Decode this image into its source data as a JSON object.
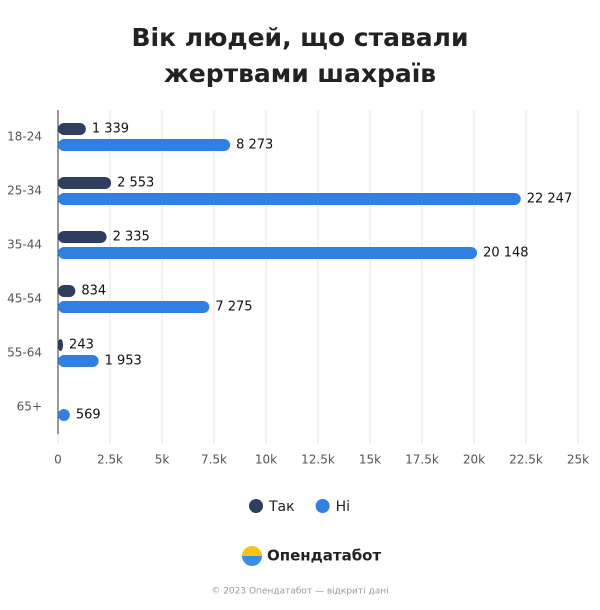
{
  "chart_data": {
    "type": "hbar",
    "title": "Вік людей, що ставали жертвами шахраїв",
    "categories": [
      "18-24",
      "25-34",
      "35-44",
      "45-54",
      "55-64",
      "65+"
    ],
    "series": [
      {
        "name": "Так",
        "color": "#2d3e5e",
        "values": [
          1339,
          2553,
          2335,
          834,
          243,
          10
        ],
        "value_labels": [
          "1 339",
          "2 553",
          "2 335",
          "834",
          "243",
          null
        ]
      },
      {
        "name": "Ні",
        "color": "#2f80e0",
        "values": [
          8273,
          22247,
          20148,
          7275,
          1953,
          569
        ],
        "value_labels": [
          "8 273",
          "22 247",
          "20 148",
          "7 275",
          "1 953",
          "569"
        ]
      }
    ],
    "xlim": [
      0,
      25000
    ],
    "xticks": [
      0,
      {
        "value": 2500,
        "label": "2.5k"
      },
      {
        "value": 5000,
        "label": "5k"
      },
      {
        "value": 7500,
        "label": "7.5k"
      },
      {
        "value": 10000,
        "label": "10k"
      },
      {
        "value": 12500,
        "label": "12.5k"
      },
      {
        "value": 15000,
        "label": "15k"
      },
      {
        "value": 17500,
        "label": "17.5k"
      },
      {
        "value": 20000,
        "label": "20k"
      },
      {
        "value": 22500,
        "label": "22.5k"
      },
      {
        "value": 25000,
        "label": "25k"
      }
    ],
    "grid": true,
    "legend": "bottom"
  },
  "footer": {
    "brand": "Опендатабот",
    "copyright": "© 2023 Опендатабот — відкриті дані"
  }
}
